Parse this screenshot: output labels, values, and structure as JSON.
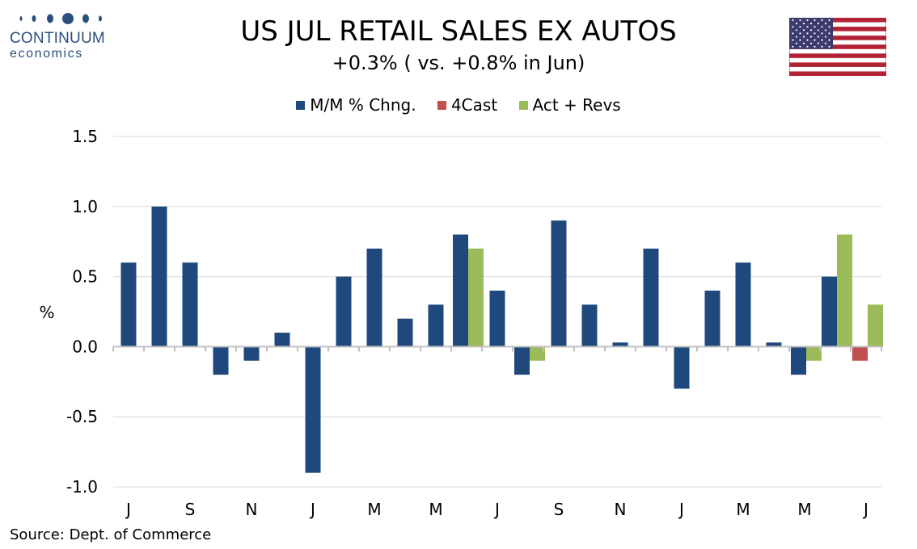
{
  "logo": {
    "word": "CONTINUUM",
    "sub": "economics"
  },
  "chart_data": {
    "type": "bar",
    "title": "US JUL RETAIL SALES EX AUTOS",
    "subtitle": "+0.3% ( vs. +0.8% in Jun)",
    "ylabel": "%",
    "ylim": [
      -1.0,
      1.5
    ],
    "yticks": [
      1.5,
      1.0,
      0.5,
      0.0,
      -0.5,
      -1.0
    ],
    "ytick_labels": [
      "1.5",
      "1.0",
      "0.5",
      "0.0",
      "-0.5",
      "-1.0"
    ],
    "grid": true,
    "legend_position": "top-center",
    "x_tick_labels": [
      "J",
      "S",
      "N",
      "J",
      "M",
      "M",
      "J",
      "S",
      "N",
      "J",
      "M",
      "M",
      "J"
    ],
    "x_tick_positions": [
      0,
      2,
      4,
      6,
      8,
      10,
      12,
      14,
      16,
      18,
      20,
      22,
      24
    ],
    "categories_count": 25,
    "series": [
      {
        "name": "M/M % Chng.",
        "color": "#1f497d",
        "values": [
          0.6,
          1.0,
          0.6,
          -0.2,
          -0.1,
          0.1,
          -0.9,
          0.5,
          0.7,
          0.2,
          0.3,
          0.8,
          0.4,
          -0.2,
          0.9,
          0.3,
          0.03,
          0.7,
          -0.3,
          0.4,
          0.6,
          0.03,
          -0.2,
          0.5,
          null
        ]
      },
      {
        "name": "4Cast",
        "color": "#c0504d",
        "values": [
          null,
          null,
          null,
          null,
          null,
          null,
          null,
          null,
          null,
          null,
          null,
          null,
          null,
          null,
          null,
          null,
          null,
          null,
          null,
          null,
          null,
          null,
          null,
          null,
          -0.1
        ]
      },
      {
        "name": "Act + Revs",
        "color": "#9bbb59",
        "values": [
          null,
          null,
          null,
          null,
          null,
          null,
          null,
          null,
          null,
          null,
          null,
          0.7,
          null,
          -0.1,
          null,
          null,
          null,
          null,
          null,
          null,
          null,
          null,
          -0.1,
          0.8,
          0.3
        ]
      }
    ]
  },
  "source": "Source: Dept. of Commerce"
}
